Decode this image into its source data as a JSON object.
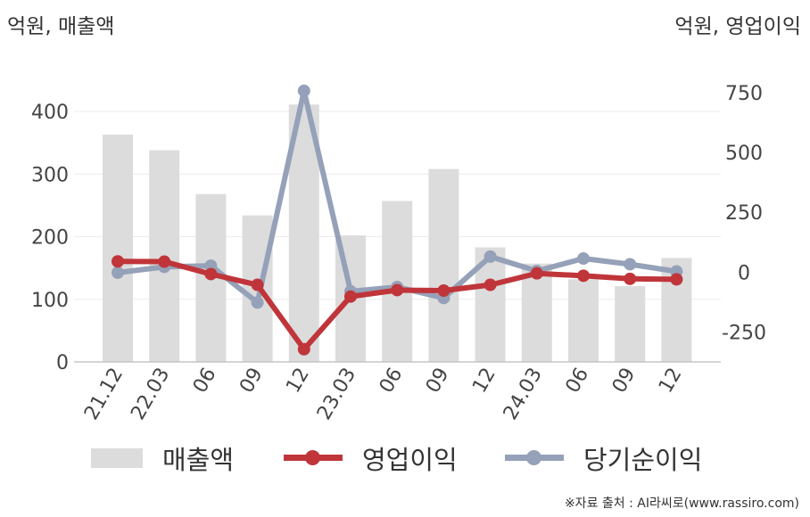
{
  "units": {
    "left": "억원, 매출액",
    "right": "억원, 영업이익"
  },
  "source": "※자료 출처 : AI라씨로(www.rassiro.com)",
  "colors": {
    "revenue": "#dcdcdc",
    "operating_profit": "#c0353a",
    "net_income": "#95a1b8"
  },
  "chart_data": {
    "type": "bar",
    "categories": [
      "21.12",
      "22.03",
      "06",
      "09",
      "12",
      "23.03",
      "06",
      "09",
      "12",
      "24.03",
      "06",
      "09",
      "12"
    ],
    "y_left": {
      "ticks": [
        0,
        100,
        200,
        300,
        400
      ],
      "ylim": [
        0,
        400
      ]
    },
    "y_right": {
      "ticks": [
        -250,
        0,
        250,
        500,
        750
      ],
      "ylim": [
        -375,
        750
      ]
    },
    "grid": true,
    "legend_position": "bottom",
    "series": [
      {
        "name": "매출액",
        "type": "bar",
        "axis": "left",
        "values": [
          363,
          338,
          268,
          234,
          411,
          202,
          257,
          308,
          183,
          157,
          132,
          121,
          166
        ]
      },
      {
        "name": "영업이익",
        "type": "line",
        "axis": "right",
        "values": [
          45,
          44,
          -8,
          -53,
          -322,
          -102,
          -75,
          -77,
          -53,
          -5,
          -15,
          -28,
          -30
        ]
      },
      {
        "name": "당기순이익",
        "type": "line",
        "axis": "right",
        "values": [
          -2,
          22,
          27,
          -127,
          758,
          -80,
          -62,
          -108,
          65,
          5,
          57,
          33,
          3
        ]
      }
    ]
  }
}
